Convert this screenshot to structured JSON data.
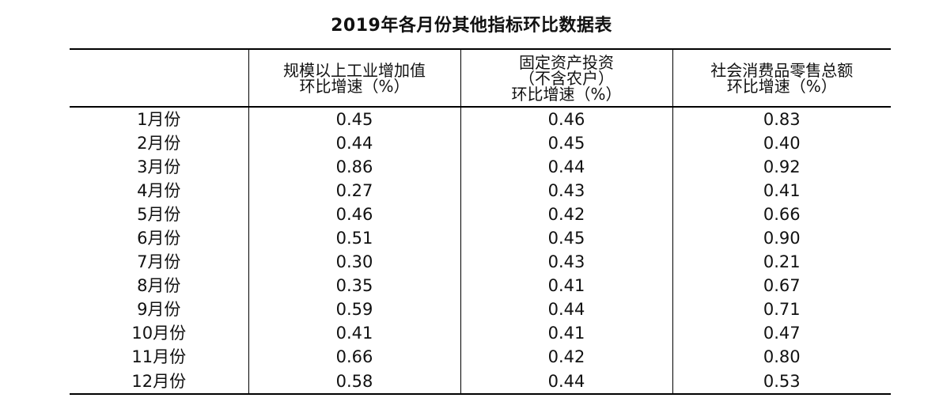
{
  "chart_data": {
    "type": "table",
    "title": "2019年各月份其他指标环比数据表",
    "columns": [
      "",
      [
        "规模以上工业增加值",
        "环比增速（%）"
      ],
      [
        "固定资产投资",
        "（不含农户）",
        "环比增速（%）"
      ],
      [
        "社会消费品零售总额",
        "环比增速（%）"
      ]
    ],
    "rows": [
      [
        "1月份",
        "0.45",
        "0.46",
        "0.83"
      ],
      [
        "2月份",
        "0.44",
        "0.45",
        "0.40"
      ],
      [
        "3月份",
        "0.86",
        "0.44",
        "0.92"
      ],
      [
        "4月份",
        "0.27",
        "0.43",
        "0.41"
      ],
      [
        "5月份",
        "0.46",
        "0.42",
        "0.66"
      ],
      [
        "6月份",
        "0.51",
        "0.45",
        "0.90"
      ],
      [
        "7月份",
        "0.30",
        "0.43",
        "0.21"
      ],
      [
        "8月份",
        "0.35",
        "0.41",
        "0.67"
      ],
      [
        "9月份",
        "0.59",
        "0.44",
        "0.71"
      ],
      [
        "10月份",
        "0.41",
        "0.41",
        "0.47"
      ],
      [
        "11月份",
        "0.66",
        "0.42",
        "0.80"
      ],
      [
        "12月份",
        "0.58",
        "0.44",
        "0.53"
      ]
    ]
  }
}
